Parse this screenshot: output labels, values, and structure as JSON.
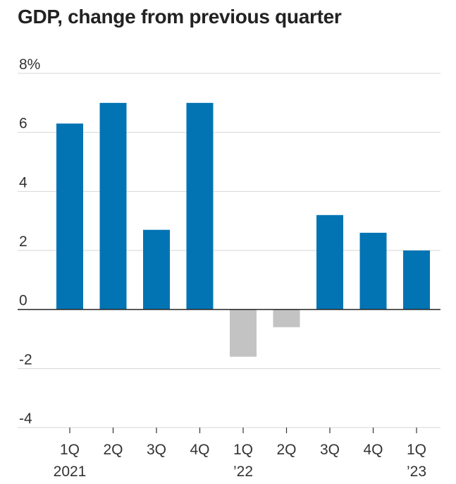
{
  "chart_data": {
    "type": "bar",
    "title": "GDP, change from previous quarter",
    "xlabel": "",
    "ylabel": "",
    "categories": [
      "1Q 2021",
      "2Q",
      "3Q",
      "4Q",
      "1Q '22",
      "2Q",
      "3Q",
      "4Q",
      "1Q '23"
    ],
    "category_labels": [
      {
        "line1": "1Q",
        "line2": "2021"
      },
      {
        "line1": "2Q",
        "line2": ""
      },
      {
        "line1": "3Q",
        "line2": ""
      },
      {
        "line1": "4Q",
        "line2": ""
      },
      {
        "line1": "1Q",
        "line2": "’22"
      },
      {
        "line1": "2Q",
        "line2": ""
      },
      {
        "line1": "3Q",
        "line2": ""
      },
      {
        "line1": "4Q",
        "line2": ""
      },
      {
        "line1": "1Q",
        "line2": "’23"
      }
    ],
    "values": [
      6.3,
      7.0,
      2.7,
      7.0,
      -1.6,
      -0.6,
      3.2,
      2.6,
      2.0
    ],
    "ylim": [
      -4,
      8
    ],
    "yticks": [
      -4,
      -2,
      0,
      2,
      4,
      6,
      8
    ],
    "ytick_labels": [
      "-4",
      "-2",
      "0",
      "2",
      "4",
      "6",
      "8%"
    ],
    "grid": true,
    "colors": {
      "positive": "#0274b3",
      "negative": "#c3c3c3",
      "grid": "#d6d6d6",
      "zero_line": "#222222"
    }
  }
}
